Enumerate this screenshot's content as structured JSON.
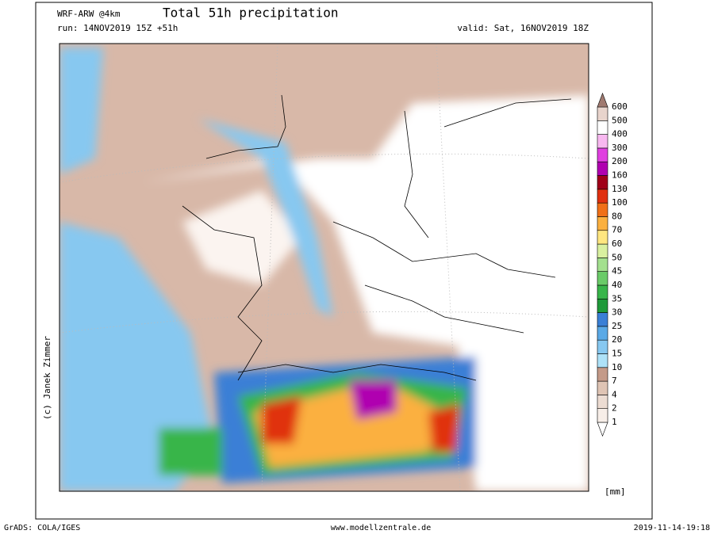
{
  "header": {
    "model": "WRF-ARW @4km",
    "title": "Total 51h precipitation",
    "run": "run: 14NOV2019 15Z +51h",
    "valid": "valid: Sat, 16NOV2019 18Z"
  },
  "credit": "(c) Janek Zimmer",
  "colorbar": {
    "unit": "[mm]",
    "levels": [
      1,
      2,
      4,
      7,
      10,
      15,
      20,
      25,
      30,
      35,
      40,
      45,
      50,
      60,
      70,
      80,
      100,
      130,
      160,
      200,
      300,
      400,
      500,
      600
    ],
    "colors": [
      "#ffffff",
      "#f7eee8",
      "#ecdcd2",
      "#dfc4b4",
      "#c49a88",
      "#aee2f8",
      "#87c8f0",
      "#5aa9e6",
      "#3a7fd6",
      "#1f9a3a",
      "#38b54a",
      "#6acb68",
      "#a3e08e",
      "#d9f0a0",
      "#ffe680",
      "#fbb040",
      "#f07018",
      "#e03010",
      "#a00018",
      "#b000b0",
      "#e040e0",
      "#f8b8f0",
      "#ffffff",
      "#e8d4cc",
      "#a07a70"
    ]
  },
  "footer": {
    "left": "GrADS: COLA/IGES",
    "center": "www.modellzentrale.de",
    "right": "2019-11-14-19:18"
  }
}
